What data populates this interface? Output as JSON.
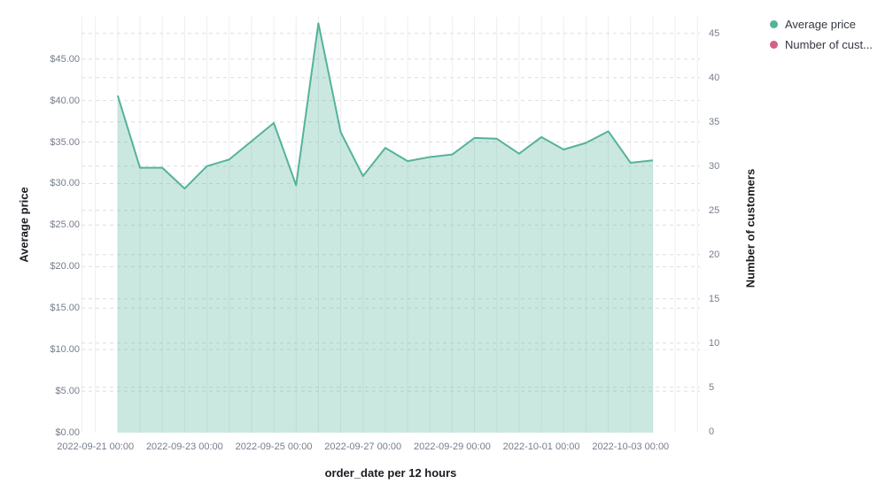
{
  "page": {
    "background": "#ffffff"
  },
  "legend": {
    "position": "top-right",
    "items": [
      {
        "label": "Average price",
        "color": "#54B399"
      },
      {
        "label": "Number of cust...",
        "color": "#D36086"
      }
    ]
  },
  "axes": {
    "left_title": "Average price",
    "right_title": "Number of customers",
    "x_title": "order_date per 12 hours"
  },
  "chart_data": {
    "type": "area",
    "title": "",
    "xlabel": "order_date per 12 hours",
    "ylabel_left": "Average price",
    "ylabel_right": "Number of customers",
    "legend_position": "top-right",
    "grid": {
      "vertical": "solid, every 12 hours",
      "horizontal": "dashed, both axes"
    },
    "x_tick_labels": [
      "2022-09-21 00:00",
      "2022-09-23 00:00",
      "2022-09-25 00:00",
      "2022-09-27 00:00",
      "2022-09-29 00:00",
      "2022-10-01 00:00",
      "2022-10-03 00:00"
    ],
    "y_left_ticks": [
      "$0.00",
      "$5.00",
      "$10.00",
      "$15.00",
      "$20.00",
      "$25.00",
      "$30.00",
      "$35.00",
      "$40.00",
      "$45.00"
    ],
    "y_left_range": [
      0,
      50
    ],
    "y_right_ticks": [
      "0",
      "5",
      "10",
      "15",
      "20",
      "25",
      "30",
      "35",
      "40",
      "45"
    ],
    "y_right_range": [
      0,
      47
    ],
    "series": [
      {
        "name": "Average price",
        "color": "#54B399",
        "fill_opacity": 0.3,
        "axis": "left",
        "x": [
          "2022-09-21 12:00",
          "2022-09-22 00:00",
          "2022-09-22 12:00",
          "2022-09-23 00:00",
          "2022-09-23 12:00",
          "2022-09-24 00:00",
          "2022-09-24 12:00",
          "2022-09-25 00:00",
          "2022-09-25 12:00",
          "2022-09-26 00:00",
          "2022-09-26 12:00",
          "2022-09-27 00:00",
          "2022-09-27 12:00",
          "2022-09-28 00:00",
          "2022-09-28 12:00",
          "2022-09-29 00:00",
          "2022-09-29 12:00",
          "2022-09-30 00:00",
          "2022-09-30 12:00",
          "2022-10-01 00:00",
          "2022-10-01 12:00",
          "2022-10-02 00:00",
          "2022-10-02 12:00",
          "2022-10-03 00:00",
          "2022-10-03 12:00"
        ],
        "values": [
          40.6,
          31.9,
          31.9,
          29.4,
          32.1,
          32.9,
          35.1,
          37.3,
          29.8,
          49.3,
          36.2,
          30.9,
          34.3,
          32.7,
          33.2,
          33.5,
          35.5,
          35.4,
          33.6,
          35.6,
          34.1,
          34.9,
          36.3,
          32.5,
          32.8
        ]
      },
      {
        "name": "Number of customers",
        "color": "#D36086",
        "axis": "right",
        "x": [],
        "values": []
      }
    ]
  }
}
